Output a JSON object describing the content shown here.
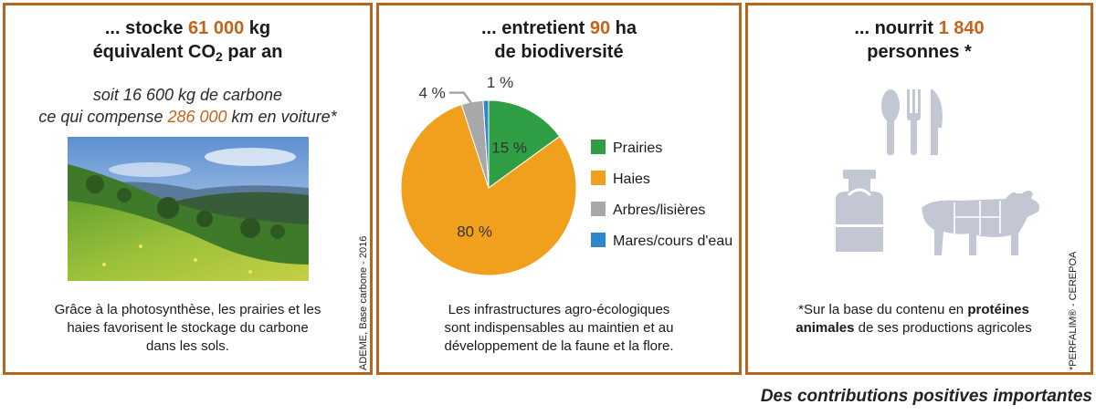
{
  "panel1": {
    "title_prefix": "... stocke ",
    "title_value": "61 000",
    "title_unit": " kg",
    "title_line2_a": "équivalent CO",
    "title_line2_sub": "2",
    "title_line2_b": " par an",
    "italic_line1": "soit 16 600 kg de carbone",
    "italic_line2_a": "ce qui compense ",
    "italic_line2_value": "286 000",
    "italic_line2_b": " km en voiture*",
    "caption_line1": "Grâce à la photosynthèse, les prairies et les",
    "caption_line2": "haies favorisent le stockage du carbone",
    "caption_line3": "dans les sols.",
    "source": "ADEME, Base carbone - 2016"
  },
  "panel2": {
    "title_prefix": "... entretient ",
    "title_value": "90",
    "title_unit": " ha",
    "title_line2": "de biodiversité",
    "caption_line1": "Les infrastructures agro-écologiques",
    "caption_line2": "sont indispensables au maintien et au",
    "caption_line3": "développement de la faune et la flore."
  },
  "panel3": {
    "title_prefix": "... nourrit ",
    "title_value": "1 840",
    "title_line2": "personnes *",
    "caption_line1": "*Sur la base du contenu en ",
    "caption_bold1": "protéines",
    "caption_bold2": "animales",
    "caption_line2_rest": " de ses productions agricoles",
    "source": "*PERFALIM® - CEREPOA",
    "icons": [
      "cutlery-icon",
      "milk-can-icon",
      "beef-cuts-icon"
    ]
  },
  "footer": "Des contributions positives importantes",
  "chart_data": {
    "type": "pie",
    "categories": [
      "Prairies",
      "Haies",
      "Arbres/lisières",
      "Mares/cours d'eau"
    ],
    "values": [
      15,
      80,
      4,
      1
    ],
    "labels": [
      "15 %",
      "80 %",
      "4 %",
      "1 %"
    ],
    "colors": [
      "#2f9e44",
      "#f0a01c",
      "#a8a8a8",
      "#2f86c8"
    ],
    "legend_placement": "right"
  }
}
